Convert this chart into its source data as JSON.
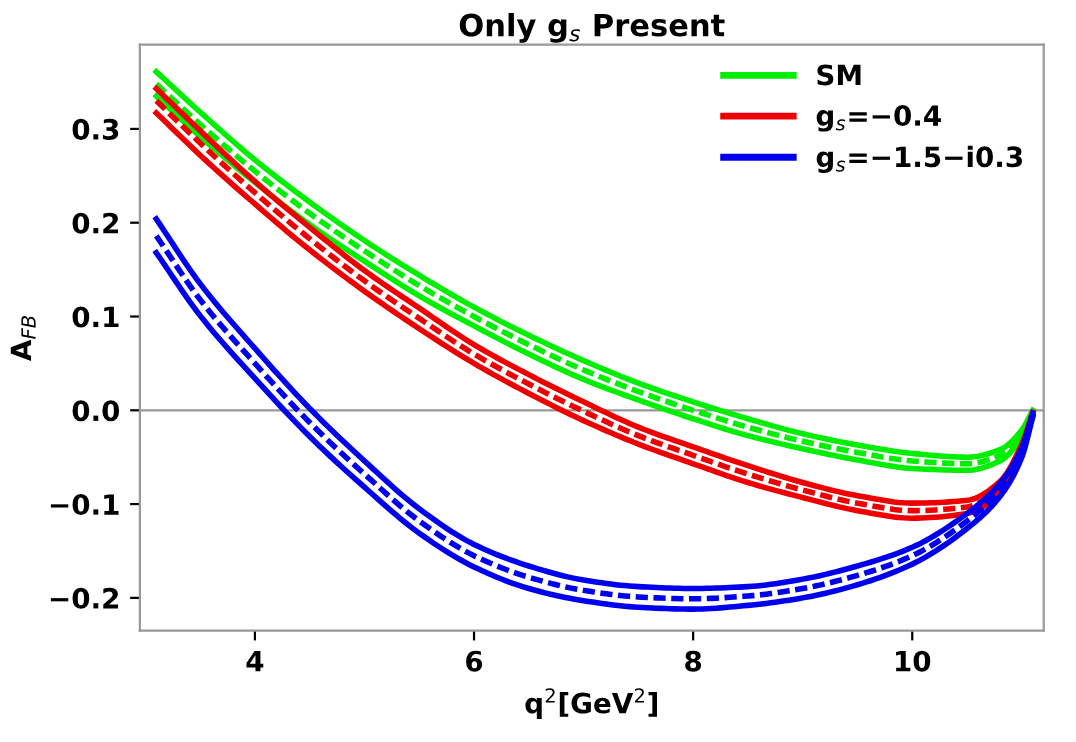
{
  "chart_data": {
    "type": "line",
    "title": "Only g$_{s}$ Present",
    "xlabel": "q$^{2}$[GeV$^{2}$]",
    "ylabel": "A$_{FB}$",
    "x": [
      3.1,
      3.5,
      4,
      4.5,
      5,
      5.5,
      6,
      6.5,
      7,
      7.5,
      8,
      8.5,
      9,
      9.5,
      10,
      10.5,
      10.8,
      11.0,
      11.1
    ],
    "series": [
      {
        "name": "SM",
        "color": "#00ee00",
        "line_style": "solid",
        "values": [
          0.361,
          0.318,
          0.267,
          0.222,
          0.181,
          0.144,
          0.11,
          0.08,
          0.053,
          0.029,
          0.009,
          -0.009,
          -0.025,
          -0.037,
          -0.046,
          -0.05,
          -0.042,
          -0.021,
          0.0
        ]
      },
      {
        "color": "#00ee00",
        "line_style": "dashed",
        "values": [
          0.348,
          0.305,
          0.255,
          0.21,
          0.17,
          0.133,
          0.1,
          0.07,
          0.043,
          0.02,
          0.0,
          -0.018,
          -0.033,
          -0.045,
          -0.054,
          -0.057,
          -0.048,
          -0.025,
          -0.002
        ]
      },
      {
        "color": "#00ee00",
        "line_style": "solid",
        "values": [
          0.335,
          0.292,
          0.243,
          0.198,
          0.159,
          0.122,
          0.09,
          0.06,
          0.033,
          0.011,
          -0.009,
          -0.027,
          -0.041,
          -0.053,
          -0.062,
          -0.064,
          -0.054,
          -0.029,
          -0.004
        ]
      },
      {
        "name": "g$_{s}$=−0.4",
        "color": "#ee0000",
        "line_style": "solid",
        "values": [
          0.343,
          0.298,
          0.244,
          0.195,
          0.149,
          0.109,
          0.07,
          0.038,
          0.009,
          -0.018,
          -0.039,
          -0.059,
          -0.077,
          -0.091,
          -0.099,
          -0.096,
          -0.076,
          -0.036,
          -0.002
        ]
      },
      {
        "color": "#ee0000",
        "line_style": "dashed",
        "values": [
          0.33,
          0.285,
          0.232,
          0.183,
          0.138,
          0.098,
          0.06,
          0.028,
          -0.001,
          -0.027,
          -0.048,
          -0.068,
          -0.085,
          -0.099,
          -0.107,
          -0.103,
          -0.082,
          -0.04,
          -0.004
        ]
      },
      {
        "color": "#ee0000",
        "line_style": "solid",
        "values": [
          0.317,
          0.272,
          0.22,
          0.171,
          0.127,
          0.087,
          0.05,
          0.018,
          -0.011,
          -0.036,
          -0.057,
          -0.077,
          -0.093,
          -0.107,
          -0.115,
          -0.11,
          -0.088,
          -0.044,
          -0.006
        ]
      },
      {
        "name": "g$_{s}$=−1.5−i0.3",
        "color": "#0000ee",
        "line_style": "solid",
        "values": [
          0.204,
          0.135,
          0.066,
          0.002,
          -0.054,
          -0.105,
          -0.143,
          -0.166,
          -0.181,
          -0.188,
          -0.19,
          -0.188,
          -0.18,
          -0.166,
          -0.146,
          -0.11,
          -0.078,
          -0.04,
          -0.003
        ]
      },
      {
        "color": "#0000ee",
        "line_style": "dashed",
        "values": [
          0.186,
          0.118,
          0.05,
          -0.013,
          -0.068,
          -0.118,
          -0.155,
          -0.178,
          -0.192,
          -0.199,
          -0.201,
          -0.198,
          -0.19,
          -0.176,
          -0.155,
          -0.118,
          -0.085,
          -0.045,
          -0.005
        ]
      },
      {
        "color": "#0000ee",
        "line_style": "solid",
        "values": [
          0.168,
          0.101,
          0.034,
          -0.028,
          -0.082,
          -0.131,
          -0.167,
          -0.19,
          -0.203,
          -0.21,
          -0.212,
          -0.208,
          -0.2,
          -0.186,
          -0.164,
          -0.126,
          -0.092,
          -0.05,
          -0.007
        ]
      }
    ],
    "xlim": [
      2.95,
      11.2
    ],
    "ylim": [
      -0.235,
      0.39
    ],
    "xticks": [
      4,
      6,
      8,
      10
    ],
    "yticks": [
      {
        "value": -0.2,
        "label": "−0.2"
      },
      {
        "value": -0.1,
        "label": "−0.1"
      },
      {
        "value": 0,
        "label": "0.0"
      },
      {
        "value": 0.1,
        "label": "0.1"
      },
      {
        "value": 0.2,
        "label": "0.2"
      },
      {
        "value": 0.3,
        "label": "0.3"
      }
    ],
    "ref_lines": [
      {
        "axis": "y",
        "value": 0,
        "color": "#999999"
      }
    ],
    "legend": "top right",
    "grid": false
  }
}
